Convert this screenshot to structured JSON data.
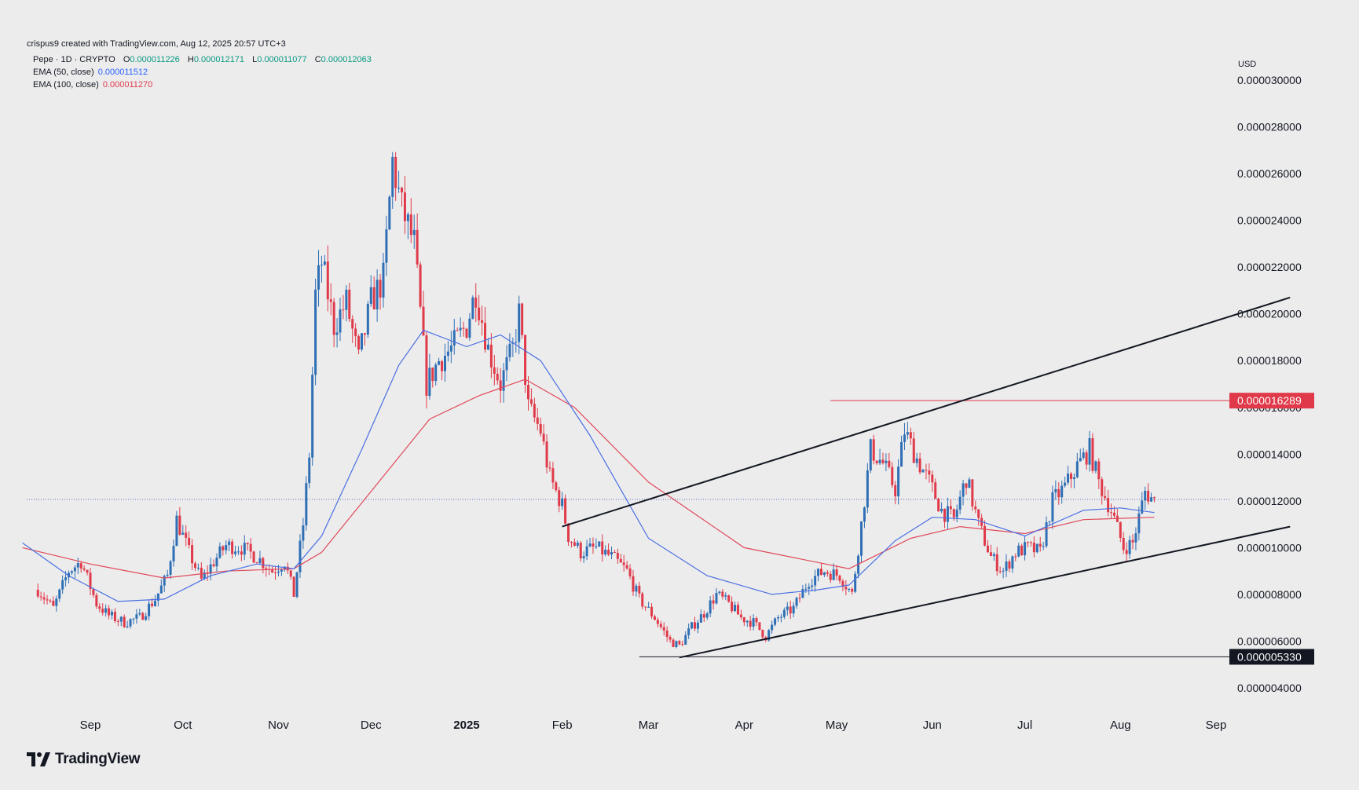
{
  "header": {
    "credit": "crispus9 created with TradingView.com, Aug 12, 2025 20:57 UTC+3",
    "symbol": "Pepe · 1D · CRYPTO",
    "o_label": "O",
    "o_value": "0.000011226",
    "h_label": "H",
    "h_value": "0.000012171",
    "l_label": "L",
    "l_value": "0.000011077",
    "c_label": "C",
    "c_value": "0.000012063",
    "ema50_label": "EMA (50, close)",
    "ema50_value": "0.000011512",
    "ema100_label": "EMA (100, close)",
    "ema100_value": "0.000011270"
  },
  "currency": "USD",
  "brand": {
    "name": "TradingView",
    "logo_icon": "tradingview-logo-icon"
  },
  "colors": {
    "up": "#2f6fb5",
    "down": "#e03a4a",
    "ema50": "#4a6fe3",
    "ema100": "#e04a5a",
    "trend": "#131722",
    "resistance": "#e03a4a",
    "support": "#131722",
    "current": "#5b6cc4",
    "background": "#ececec"
  },
  "chart_data": {
    "type": "candlestick",
    "title": "Pepe · 1D · CRYPTO",
    "ylabel": "USD",
    "ylim": [
      3.5e-06,
      3.05e-05
    ],
    "y_ticks": [
      "0.000004000",
      "0.000006000",
      "0.000008000",
      "0.000010000",
      "0.000012000",
      "0.000014000",
      "0.000016000",
      "0.000018000",
      "0.000020000",
      "0.000022000",
      "0.000024000",
      "0.000026000",
      "0.000028000",
      "0.000030000"
    ],
    "x_ticks": [
      {
        "label": "Sep",
        "date": "2024-09-01",
        "bold": false
      },
      {
        "label": "Oct",
        "date": "2024-10-01",
        "bold": false
      },
      {
        "label": "Nov",
        "date": "2024-11-01",
        "bold": false
      },
      {
        "label": "Dec",
        "date": "2024-12-01",
        "bold": false
      },
      {
        "label": "2025",
        "date": "2025-01-01",
        "bold": true
      },
      {
        "label": "Feb",
        "date": "2025-02-01",
        "bold": false
      },
      {
        "label": "Mar",
        "date": "2025-03-01",
        "bold": false
      },
      {
        "label": "Apr",
        "date": "2025-04-01",
        "bold": false
      },
      {
        "label": "May",
        "date": "2025-05-01",
        "bold": false
      },
      {
        "label": "Jun",
        "date": "2025-06-01",
        "bold": false
      },
      {
        "label": "Jul",
        "date": "2025-07-01",
        "bold": false
      },
      {
        "label": "Aug",
        "date": "2025-08-01",
        "bold": false
      },
      {
        "label": "Sep",
        "date": "2025-09-01",
        "bold": false
      }
    ],
    "candles_close": [
      [
        "2024-08-15",
        8.2e-06
      ],
      [
        "2024-08-20",
        7.4e-06
      ],
      [
        "2024-08-25",
        9e-06
      ],
      [
        "2024-08-29",
        9.4e-06
      ],
      [
        "2024-09-03",
        7.6e-06
      ],
      [
        "2024-09-07",
        7.1e-06
      ],
      [
        "2024-09-12",
        6.8e-06
      ],
      [
        "2024-09-17",
        7e-06
      ],
      [
        "2024-09-22",
        7.8e-06
      ],
      [
        "2024-09-26",
        8.8e-06
      ],
      [
        "2024-09-29",
        1.12e-05
      ],
      [
        "2024-10-03",
        9.8e-06
      ],
      [
        "2024-10-07",
        8.6e-06
      ],
      [
        "2024-10-11",
        9.4e-06
      ],
      [
        "2024-10-15",
        1.01e-05
      ],
      [
        "2024-10-20",
        1e-05
      ],
      [
        "2024-10-25",
        9.6e-06
      ],
      [
        "2024-10-30",
        9e-06
      ],
      [
        "2024-11-03",
        9.4e-06
      ],
      [
        "2024-11-06",
        8e-06
      ],
      [
        "2024-11-09",
        1.1e-05
      ],
      [
        "2024-11-11",
        1.4e-05
      ],
      [
        "2024-11-13",
        2.08e-05
      ],
      [
        "2024-11-15",
        2.22e-05
      ],
      [
        "2024-11-19",
        1.95e-05
      ],
      [
        "2024-11-23",
        2.05e-05
      ],
      [
        "2024-11-27",
        1.8e-05
      ],
      [
        "2024-12-01",
        2.05e-05
      ],
      [
        "2024-12-05",
        2.15e-05
      ],
      [
        "2024-12-08",
        2.65e-05
      ],
      [
        "2024-12-11",
        2.45e-05
      ],
      [
        "2024-12-15",
        2.3e-05
      ],
      [
        "2024-12-19",
        1.7e-05
      ],
      [
        "2024-12-23",
        1.8e-05
      ],
      [
        "2024-12-27",
        1.85e-05
      ],
      [
        "2025-01-01",
        1.95e-05
      ],
      [
        "2025-01-04",
        2.1e-05
      ],
      [
        "2025-01-08",
        1.85e-05
      ],
      [
        "2025-01-12",
        1.7e-05
      ],
      [
        "2025-01-16",
        1.85e-05
      ],
      [
        "2025-01-18",
        2e-05
      ],
      [
        "2025-01-21",
        1.6e-05
      ],
      [
        "2025-01-25",
        1.5e-05
      ],
      [
        "2025-01-28",
        1.3e-05
      ],
      [
        "2025-02-01",
        1.18e-05
      ],
      [
        "2025-02-03",
        1.05e-05
      ],
      [
        "2025-02-07",
        9.8e-06
      ],
      [
        "2025-02-12",
        1e-05
      ],
      [
        "2025-02-17",
        9.6e-06
      ],
      [
        "2025-02-22",
        9e-06
      ],
      [
        "2025-02-26",
        7.8e-06
      ],
      [
        "2025-03-03",
        7e-06
      ],
      [
        "2025-03-08",
        6e-06
      ],
      [
        "2025-03-11",
        5.8e-06
      ],
      [
        "2025-03-15",
        6.6e-06
      ],
      [
        "2025-03-19",
        7.2e-06
      ],
      [
        "2025-03-23",
        8e-06
      ],
      [
        "2025-03-27",
        7.6e-06
      ],
      [
        "2025-03-31",
        7e-06
      ],
      [
        "2025-04-04",
        6.8e-06
      ],
      [
        "2025-04-08",
        6.2e-06
      ],
      [
        "2025-04-12",
        7e-06
      ],
      [
        "2025-04-17",
        7.4e-06
      ],
      [
        "2025-04-22",
        8.6e-06
      ],
      [
        "2025-04-27",
        9e-06
      ],
      [
        "2025-05-02",
        8.8e-06
      ],
      [
        "2025-05-06",
        8e-06
      ],
      [
        "2025-05-09",
        1.1e-05
      ],
      [
        "2025-05-12",
        1.42e-05
      ],
      [
        "2025-05-16",
        1.36e-05
      ],
      [
        "2025-05-20",
        1.25e-05
      ],
      [
        "2025-05-23",
        1.5e-05
      ],
      [
        "2025-05-27",
        1.38e-05
      ],
      [
        "2025-05-31",
        1.28e-05
      ],
      [
        "2025-06-04",
        1.16e-05
      ],
      [
        "2025-06-08",
        1.12e-05
      ],
      [
        "2025-06-12",
        1.3e-05
      ],
      [
        "2025-06-16",
        1.1e-05
      ],
      [
        "2025-06-20",
        9.6e-06
      ],
      [
        "2025-06-24",
        9e-06
      ],
      [
        "2025-06-28",
        9.8e-06
      ],
      [
        "2025-07-02",
        1e-05
      ],
      [
        "2025-07-06",
        9.8e-06
      ],
      [
        "2025-07-10",
        1.2e-05
      ],
      [
        "2025-07-14",
        1.26e-05
      ],
      [
        "2025-07-18",
        1.35e-05
      ],
      [
        "2025-07-22",
        1.42e-05
      ],
      [
        "2025-07-25",
        1.28e-05
      ],
      [
        "2025-07-29",
        1.16e-05
      ],
      [
        "2025-08-02",
        1e-05
      ],
      [
        "2025-08-05",
        1.02e-05
      ],
      [
        "2025-08-09",
        1.24e-05
      ],
      [
        "2025-08-12",
        1.2e-05
      ]
    ],
    "ema50": [
      [
        "2024-08-10",
        1.02e-05
      ],
      [
        "2024-08-25",
        8.8e-06
      ],
      [
        "2024-09-10",
        7.7e-06
      ],
      [
        "2024-09-25",
        7.8e-06
      ],
      [
        "2024-10-10",
        8.8e-06
      ],
      [
        "2024-10-25",
        9.3e-06
      ],
      [
        "2024-11-06",
        9.1e-06
      ],
      [
        "2024-11-15",
        1.05e-05
      ],
      [
        "2024-11-28",
        1.42e-05
      ],
      [
        "2024-12-10",
        1.78e-05
      ],
      [
        "2024-12-18",
        1.93e-05
      ],
      [
        "2025-01-01",
        1.86e-05
      ],
      [
        "2025-01-12",
        1.91e-05
      ],
      [
        "2025-01-25",
        1.8e-05
      ],
      [
        "2025-02-10",
        1.48e-05
      ],
      [
        "2025-03-01",
        1.04e-05
      ],
      [
        "2025-03-20",
        8.8e-06
      ],
      [
        "2025-04-10",
        8e-06
      ],
      [
        "2025-04-25",
        8.2e-06
      ],
      [
        "2025-05-05",
        8.4e-06
      ],
      [
        "2025-05-20",
        1.03e-05
      ],
      [
        "2025-06-01",
        1.13e-05
      ],
      [
        "2025-06-15",
        1.12e-05
      ],
      [
        "2025-07-01",
        1.05e-05
      ],
      [
        "2025-07-20",
        1.16e-05
      ],
      [
        "2025-08-01",
        1.17e-05
      ],
      [
        "2025-08-12",
        1.15e-05
      ]
    ],
    "ema100": [
      [
        "2024-08-10",
        1e-05
      ],
      [
        "2024-09-01",
        9.3e-06
      ],
      [
        "2024-09-25",
        8.7e-06
      ],
      [
        "2024-10-15",
        9e-06
      ],
      [
        "2024-11-06",
        9.1e-06
      ],
      [
        "2024-11-15",
        9.8e-06
      ],
      [
        "2024-12-01",
        1.24e-05
      ],
      [
        "2024-12-20",
        1.55e-05
      ],
      [
        "2025-01-05",
        1.65e-05
      ],
      [
        "2025-01-20",
        1.72e-05
      ],
      [
        "2025-02-05",
        1.6e-05
      ],
      [
        "2025-03-01",
        1.28e-05
      ],
      [
        "2025-04-01",
        1e-05
      ],
      [
        "2025-05-05",
        9.1e-06
      ],
      [
        "2025-05-25",
        1.04e-05
      ],
      [
        "2025-06-10",
        1.09e-05
      ],
      [
        "2025-07-01",
        1.06e-05
      ],
      [
        "2025-07-20",
        1.12e-05
      ],
      [
        "2025-08-12",
        1.13e-05
      ]
    ],
    "drawings": {
      "upper_trendline": [
        [
          "2025-02-01",
          1.09e-05
        ],
        [
          "2025-09-25",
          2.07e-05
        ]
      ],
      "lower_trendline": [
        [
          "2025-03-11",
          5.3e-06
        ],
        [
          "2025-09-25",
          1.09e-05
        ]
      ],
      "resistance_segment": {
        "from": "2025-04-29",
        "value": 1.6289e-05,
        "label": "0.000016289"
      },
      "support_segment": {
        "from": "2025-02-26",
        "value": 5.33e-06,
        "label": "0.000005330"
      },
      "current_price": 1.2063e-05
    }
  }
}
